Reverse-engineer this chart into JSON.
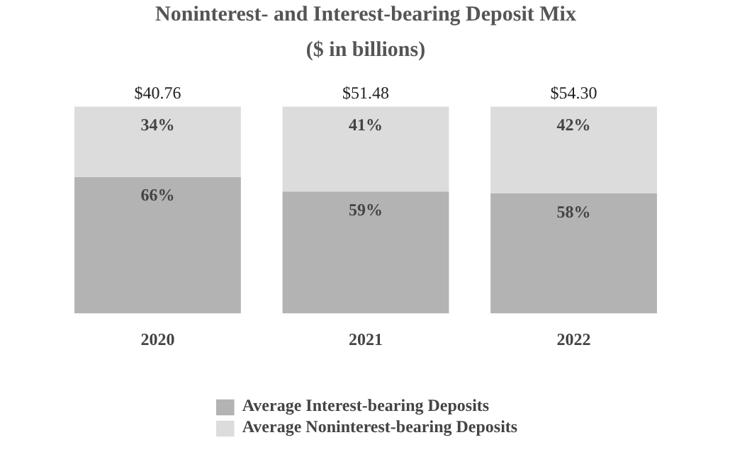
{
  "chart_data": {
    "type": "bar",
    "title": "Noninterest- and Interest-bearing Deposit Mix",
    "subtitle": "($ in billions)",
    "categories": [
      "2020",
      "2021",
      "2022"
    ],
    "stacked": true,
    "series": [
      {
        "name": "Average Interest-bearing Deposits",
        "color": "#b3b3b3",
        "values": [
          66,
          59,
          58
        ],
        "value_labels": [
          "66%",
          "59%",
          "58%"
        ]
      },
      {
        "name": "Average Noninterest-bearing Deposits",
        "color": "#dcdcdc",
        "values": [
          34,
          41,
          42
        ],
        "value_labels": [
          "34%",
          "41%",
          "42%"
        ]
      }
    ],
    "annotations": [
      {
        "text": "$40.76",
        "x": "2020",
        "y": 100
      },
      {
        "text": "$51.48",
        "x": "2021",
        "y": 100
      },
      {
        "text": "$54.30",
        "x": "2022",
        "y": 100
      }
    ],
    "legend": "bottom"
  }
}
